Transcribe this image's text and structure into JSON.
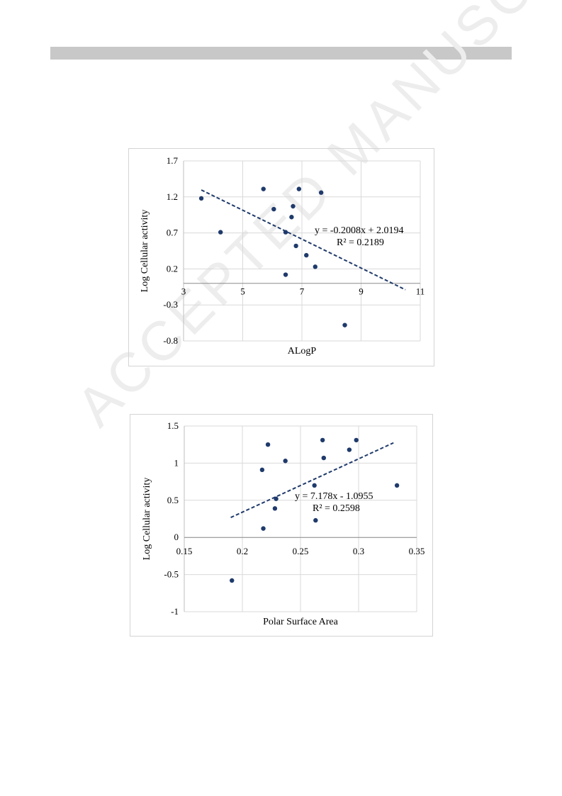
{
  "watermark": "ACCEPTED MANUSCRIPT",
  "colors": {
    "point": "#1f3a6b",
    "trendline": "#1f3a6b",
    "grid": "#d9d9d9",
    "axis": "#bfbfbf"
  },
  "chart_data": [
    {
      "type": "scatter",
      "title": "",
      "xlabel": "ALogP",
      "ylabel": "Log Cellular activity",
      "xlim": [
        3,
        11
      ],
      "ylim": [
        -0.8,
        1.7
      ],
      "xticks": [
        3,
        5,
        7,
        9,
        11
      ],
      "xtick_labels": [
        "3",
        "5",
        "7",
        "9",
        "11"
      ],
      "yticks": [
        -0.8,
        -0.3,
        0.2,
        0.7,
        1.2,
        1.7
      ],
      "ytick_labels": [
        "-0.8",
        "-0.3",
        "0.2",
        "0.7",
        "1.2",
        "1.7"
      ],
      "x_axis_crosses_y_at": 0,
      "grid": true,
      "trendline": {
        "slope": -0.2008,
        "intercept": 2.0194,
        "x_range": [
          3.6,
          10.5
        ],
        "style": "dashed"
      },
      "equation": "y = -0.2008x + 2.0194",
      "r2_label": "R² = 0.2189",
      "points": [
        {
          "x": 3.6,
          "y": 1.18
        },
        {
          "x": 4.25,
          "y": 0.71
        },
        {
          "x": 5.7,
          "y": 1.31
        },
        {
          "x": 6.05,
          "y": 1.03
        },
        {
          "x": 6.45,
          "y": 0.71
        },
        {
          "x": 6.45,
          "y": 0.12
        },
        {
          "x": 6.65,
          "y": 0.92
        },
        {
          "x": 6.7,
          "y": 1.07
        },
        {
          "x": 6.8,
          "y": 0.52
        },
        {
          "x": 6.9,
          "y": 1.31
        },
        {
          "x": 7.15,
          "y": 0.39
        },
        {
          "x": 7.45,
          "y": 0.23
        },
        {
          "x": 7.65,
          "y": 1.26
        },
        {
          "x": 8.45,
          "y": -0.58
        }
      ]
    },
    {
      "type": "scatter",
      "title": "",
      "xlabel": "Polar Surface Area",
      "ylabel": "Log Cellular activity",
      "xlim": [
        0.15,
        0.35
      ],
      "ylim": [
        -1,
        1.5
      ],
      "xticks": [
        0.15,
        0.2,
        0.25,
        0.3,
        0.35
      ],
      "xtick_labels": [
        "0.15",
        "0.2",
        "0.25",
        "0.3",
        "0.35"
      ],
      "yticks": [
        -1,
        -0.5,
        0,
        0.5,
        1,
        1.5
      ],
      "ytick_labels": [
        "-1",
        "-0.5",
        "0",
        "0.5",
        "1",
        "1.5"
      ],
      "x_axis_crosses_y_at": 0,
      "grid": true,
      "trendline": {
        "slope": 7.178,
        "intercept": -1.0955,
        "x_range": [
          0.19,
          0.33
        ],
        "style": "dashed"
      },
      "equation": "y = 7.178x - 1.0955",
      "r2_label": "R² = 0.2598",
      "points": [
        {
          "x": 0.191,
          "y": -0.58
        },
        {
          "x": 0.217,
          "y": 0.91
        },
        {
          "x": 0.218,
          "y": 0.12
        },
        {
          "x": 0.222,
          "y": 1.25
        },
        {
          "x": 0.228,
          "y": 0.39
        },
        {
          "x": 0.229,
          "y": 0.52
        },
        {
          "x": 0.237,
          "y": 1.03
        },
        {
          "x": 0.262,
          "y": 0.7
        },
        {
          "x": 0.263,
          "y": 0.23
        },
        {
          "x": 0.269,
          "y": 1.31
        },
        {
          "x": 0.27,
          "y": 1.07
        },
        {
          "x": 0.292,
          "y": 1.18
        },
        {
          "x": 0.298,
          "y": 1.31
        },
        {
          "x": 0.333,
          "y": 0.7
        }
      ]
    }
  ]
}
